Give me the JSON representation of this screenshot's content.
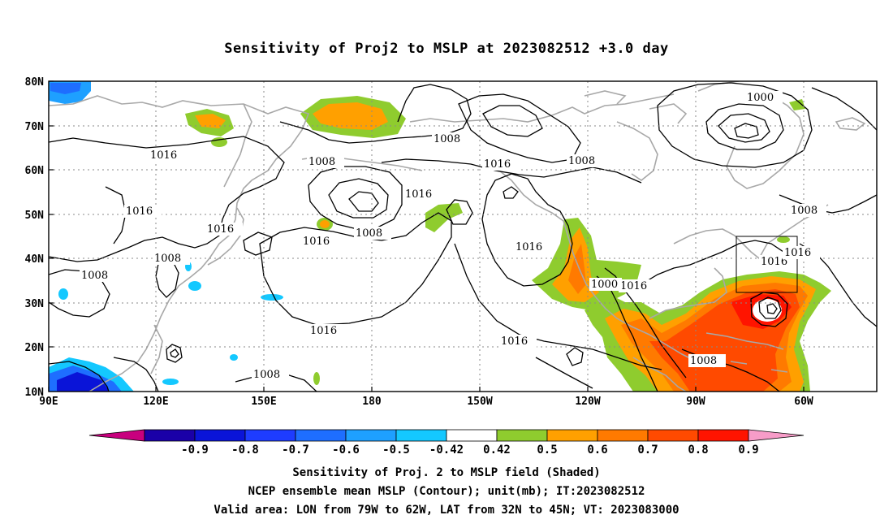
{
  "title": "Sensitivity of Proj2 to MSLP at 2023082512 +3.0 day",
  "map": {
    "lon_ticks": [
      "90E",
      "120E",
      "150E",
      "180",
      "150W",
      "120W",
      "90W",
      "60W"
    ],
    "lat_ticks": [
      "80N",
      "70N",
      "60N",
      "50N",
      "40N",
      "30N",
      "20N",
      "10N"
    ],
    "contour_labels": [
      "1000",
      "1008",
      "1008",
      "1008",
      "1008",
      "1008",
      "1008",
      "1008",
      "1008",
      "1008",
      "1016",
      "1016",
      "1016",
      "1016",
      "1016",
      "1016",
      "1016",
      "1016",
      "1016",
      "1016",
      "1016",
      "1000",
      "1016"
    ],
    "valid_box": {
      "lon_range": [
        "79W",
        "62W"
      ],
      "lat_range": [
        "32N",
        "45N"
      ]
    }
  },
  "colorbar": {
    "labels": [
      "-0.9",
      "-0.8",
      "-0.7",
      "-0.6",
      "-0.5",
      "-0.42",
      "0.42",
      "0.5",
      "0.6",
      "0.7",
      "0.8",
      "0.9"
    ],
    "colors": [
      "#c8007e",
      "#1a00a8",
      "#0a14d8",
      "#1e3cff",
      "#1e6eff",
      "#1ea0ff",
      "#14c8ff",
      "#ffffff",
      "#8fcc2e",
      "#ffa000",
      "#ff7a00",
      "#ff4a00",
      "#ff1400",
      "#f79cc8"
    ]
  },
  "captions": [
    "Sensitivity of Proj. 2 to MSLP field (Shaded)",
    "NCEP ensemble mean MSLP (Contour); unit(mb); IT:2023082512",
    "Valid area: LON from 79W to 62W, LAT from 32N to 45N; VT: 2023083000"
  ]
}
